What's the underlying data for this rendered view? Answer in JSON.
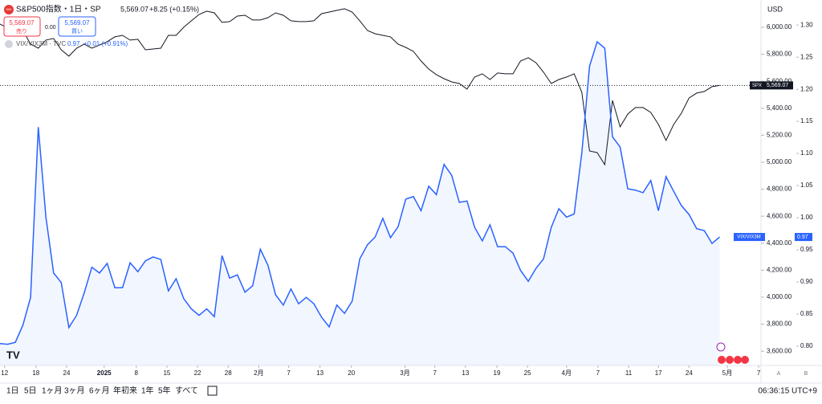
{
  "header": {
    "icon": "500",
    "title": "S&P500指数・1日・SP",
    "price": "5,569.07",
    "change": "+8.25 (+0.15%)",
    "sell_price": "5,569.07",
    "sell": "売り",
    "spread": "0.00",
    "buy_price": "5,569.07",
    "buy": "買い",
    "compare": "VIX/VIX3M · TVC",
    "compare_price": "0.97",
    "compare_change": "+0.01 (+0.91%)"
  },
  "chart_data": {
    "type": "line",
    "currency": "USD",
    "xlim": [
      0,
      99.4
    ],
    "xticks": [
      {
        "value": 0.6,
        "label": "12"
      },
      {
        "value": 4.7,
        "label": "18"
      },
      {
        "value": 8.7,
        "label": "24"
      },
      {
        "value": 13.6,
        "label": "2025"
      },
      {
        "value": 17.8,
        "label": "8"
      },
      {
        "value": 21.8,
        "label": "15"
      },
      {
        "value": 25.8,
        "label": "22"
      },
      {
        "value": 29.8,
        "label": "28"
      },
      {
        "value": 33.8,
        "label": "2月"
      },
      {
        "value": 37.7,
        "label": "7"
      },
      {
        "value": 41.8,
        "label": "13"
      },
      {
        "value": 45.9,
        "label": "20"
      },
      {
        "value": 52.9,
        "label": "3月"
      },
      {
        "value": 56.8,
        "label": "7"
      },
      {
        "value": 60.8,
        "label": "13"
      },
      {
        "value": 64.9,
        "label": "19"
      },
      {
        "value": 68.9,
        "label": "25"
      },
      {
        "value": 74.0,
        "label": "4月"
      },
      {
        "value": 78.1,
        "label": "7"
      },
      {
        "value": 82.1,
        "label": "11"
      },
      {
        "value": 86.0,
        "label": "17"
      },
      {
        "value": 90.0,
        "label": "24"
      },
      {
        "value": 95.0,
        "label": "5月"
      },
      {
        "value": 99.1,
        "label": "7"
      }
    ],
    "ylim": [
      3494,
      6202
    ],
    "yticks": [
      {
        "value": 3600,
        "label": "3,600.00"
      },
      {
        "value": 3800,
        "label": "3,800.00"
      },
      {
        "value": 4000,
        "label": "4,000.00"
      },
      {
        "value": 4200,
        "label": "4,200.00"
      },
      {
        "value": 4400,
        "label": "4,400.00"
      },
      {
        "value": 4600,
        "label": "4,600.00"
      },
      {
        "value": 4800,
        "label": "4,800.00"
      },
      {
        "value": 5000,
        "label": "5,000.00"
      },
      {
        "value": 5200,
        "label": "5,200.00"
      },
      {
        "value": 5400,
        "label": "5,400.00"
      },
      {
        "value": 5600,
        "label": "5,600.00"
      },
      {
        "value": 5800,
        "label": "5,800.00"
      },
      {
        "value": 6000,
        "label": "6,000.00"
      }
    ],
    "y2lim": [
      0.77,
      1.339
    ],
    "y2ticks": [
      {
        "value": 0.8,
        "label": "0.80"
      },
      0.85,
      {
        "value": 0.9,
        "label": "0.90"
      },
      0.95,
      {
        "value": 1.0,
        "label": "1.00"
      },
      1.05,
      {
        "value": 1.1,
        "label": "1.10"
      },
      1.15,
      {
        "value": 1.2,
        "label": "1.20"
      },
      1.25,
      {
        "value": 1.3,
        "label": "1.30"
      }
    ],
    "series": [
      {
        "name": "SPX",
        "color": "#131722",
        "last_label": "5,569.07",
        "values": [
          6024,
          5994,
          6036,
          5976,
          5875,
          5845,
          5905,
          5917,
          5833,
          5786,
          5845,
          5875,
          5845,
          5869,
          5893,
          5929,
          5940,
          5905,
          5911,
          5833,
          5839,
          5845,
          5940,
          5940,
          6000,
          6048,
          6095,
          6119,
          6107,
          6036,
          6042,
          6083,
          6089,
          6054,
          6054,
          6071,
          6107,
          6089,
          6048,
          6042,
          6042,
          6048,
          6101,
          6113,
          6125,
          6137,
          6113,
          6048,
          5976,
          5952,
          5940,
          5929,
          5875,
          5851,
          5821,
          5750,
          5690,
          5649,
          5619,
          5595,
          5583,
          5542,
          5631,
          5655,
          5613,
          5661,
          5655,
          5655,
          5750,
          5774,
          5738,
          5667,
          5583,
          5613,
          5631,
          5655,
          5518,
          5083,
          5071,
          4982,
          5458,
          5262,
          5357,
          5405,
          5405,
          5369,
          5280,
          5161,
          5280,
          5363,
          5476,
          5512,
          5524,
          5560,
          5569.07
        ]
      },
      {
        "name": "VIX/VIX3M",
        "color": "#2962ff",
        "axis": "y2",
        "last_label": "0.97",
        "values": [
          0.804,
          0.803,
          0.806,
          0.833,
          0.876,
          1.141,
          1.001,
          0.914,
          0.899,
          0.829,
          0.848,
          0.883,
          0.923,
          0.914,
          0.929,
          0.891,
          0.891,
          0.93,
          0.916,
          0.933,
          0.939,
          0.935,
          0.886,
          0.905,
          0.874,
          0.858,
          0.848,
          0.858,
          0.846,
          0.941,
          0.906,
          0.911,
          0.884,
          0.894,
          0.951,
          0.926,
          0.88,
          0.864,
          0.889,
          0.866,
          0.876,
          0.866,
          0.845,
          0.83,
          0.864,
          0.851,
          0.87,
          0.936,
          0.958,
          0.97,
          0.999,
          0.969,
          0.986,
          1.029,
          1.033,
          1.011,
          1.049,
          1.036,
          1.083,
          1.066,
          1.024,
          1.026,
          0.985,
          0.964,
          0.989,
          0.955,
          0.955,
          0.945,
          0.918,
          0.901,
          0.921,
          0.936,
          0.985,
          1.014,
          1.001,
          1.006,
          1.101,
          1.236,
          1.274,
          1.264,
          1.126,
          1.11,
          1.045,
          1.043,
          1.039,
          1.058,
          1.011,
          1.064,
          1.041,
          1.019,
          1.005,
          0.983,
          0.98,
          0.96,
          0.97
        ]
      }
    ]
  },
  "toolbar": {
    "ranges": [
      "1日",
      "5日",
      "1ヶ月",
      "3ヶ月",
      "6ヶ月",
      "年初来",
      "1年",
      "5年",
      "すべて"
    ],
    "time": "06:36:15 UTC+9",
    "scale_a": "A",
    "scale_b": "B"
  }
}
